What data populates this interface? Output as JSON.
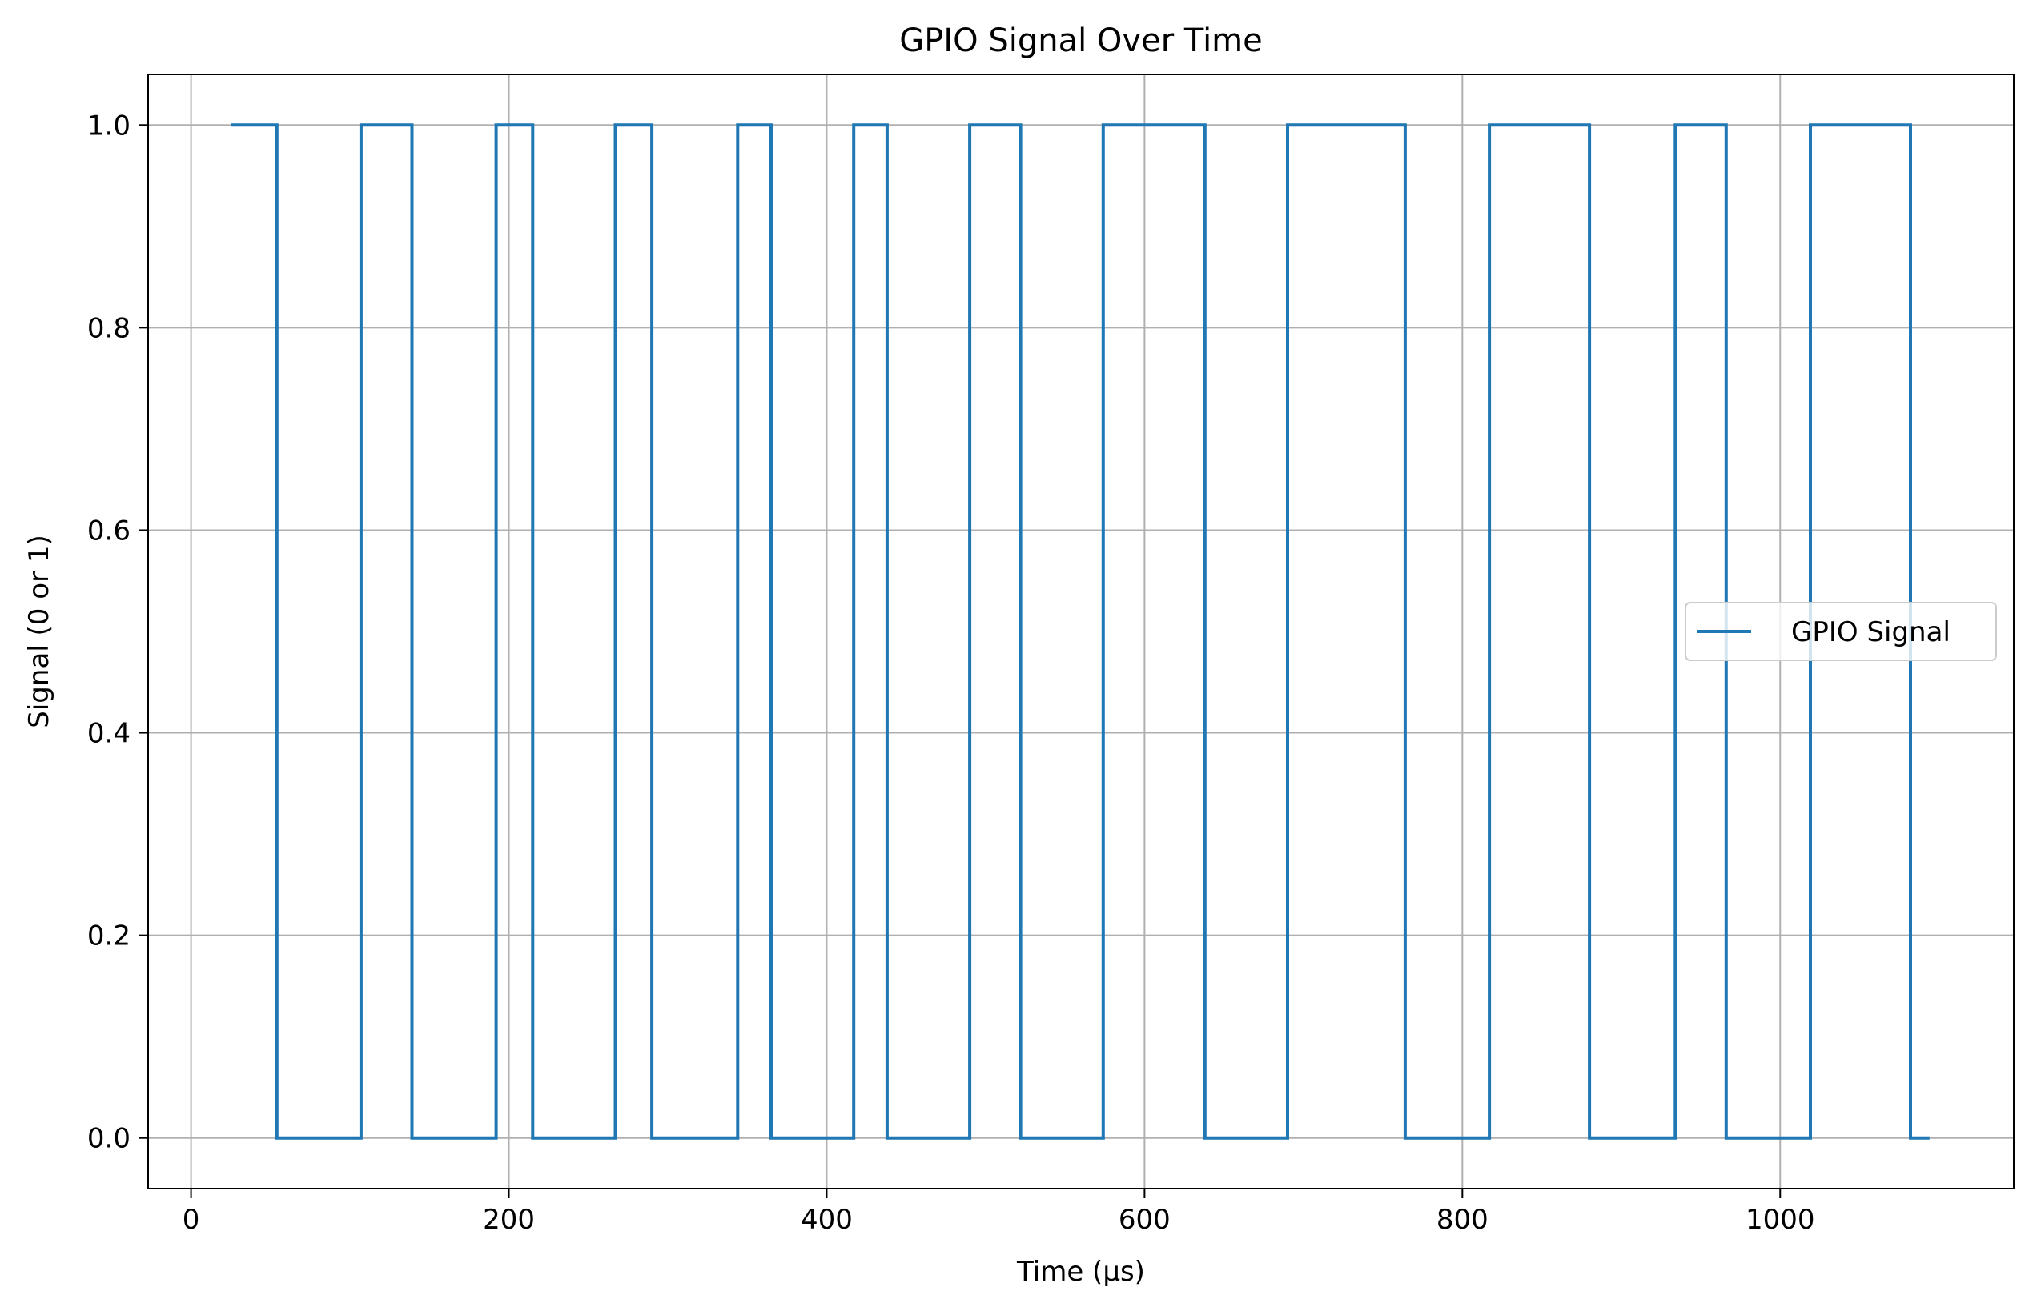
{
  "chart_data": {
    "type": "line",
    "title": "GPIO Signal Over Time",
    "xlabel": "Time (μs)",
    "ylabel": "Signal (0 or 1)",
    "xlim": [
      -27,
      1147
    ],
    "ylim": [
      -0.05,
      1.05
    ],
    "x_ticks": [
      0,
      200,
      400,
      600,
      800,
      1000
    ],
    "y_ticks": [
      0.0,
      0.2,
      0.4,
      0.6,
      0.8,
      1.0
    ],
    "x_tick_labels": [
      "0",
      "200",
      "400",
      "600",
      "800",
      "1000"
    ],
    "y_tick_labels": [
      "0.0",
      "0.2",
      "0.4",
      "0.6",
      "0.8",
      "1.0"
    ],
    "grid": true,
    "legend_position": "center-right",
    "series": [
      {
        "name": "GPIO Signal",
        "color": "#1f77b4",
        "step": "post",
        "x": [
          25,
          54,
          107,
          139,
          192,
          215,
          267,
          290,
          344,
          365,
          417,
          438,
          490,
          522,
          574,
          638,
          690,
          764,
          817,
          880,
          934,
          966,
          1019,
          1082,
          1094
        ],
        "y": [
          1,
          0,
          1,
          0,
          1,
          0,
          1,
          0,
          1,
          0,
          1,
          0,
          1,
          0,
          1,
          0,
          1,
          0,
          1,
          0,
          1,
          0,
          1,
          0,
          0
        ]
      }
    ]
  }
}
